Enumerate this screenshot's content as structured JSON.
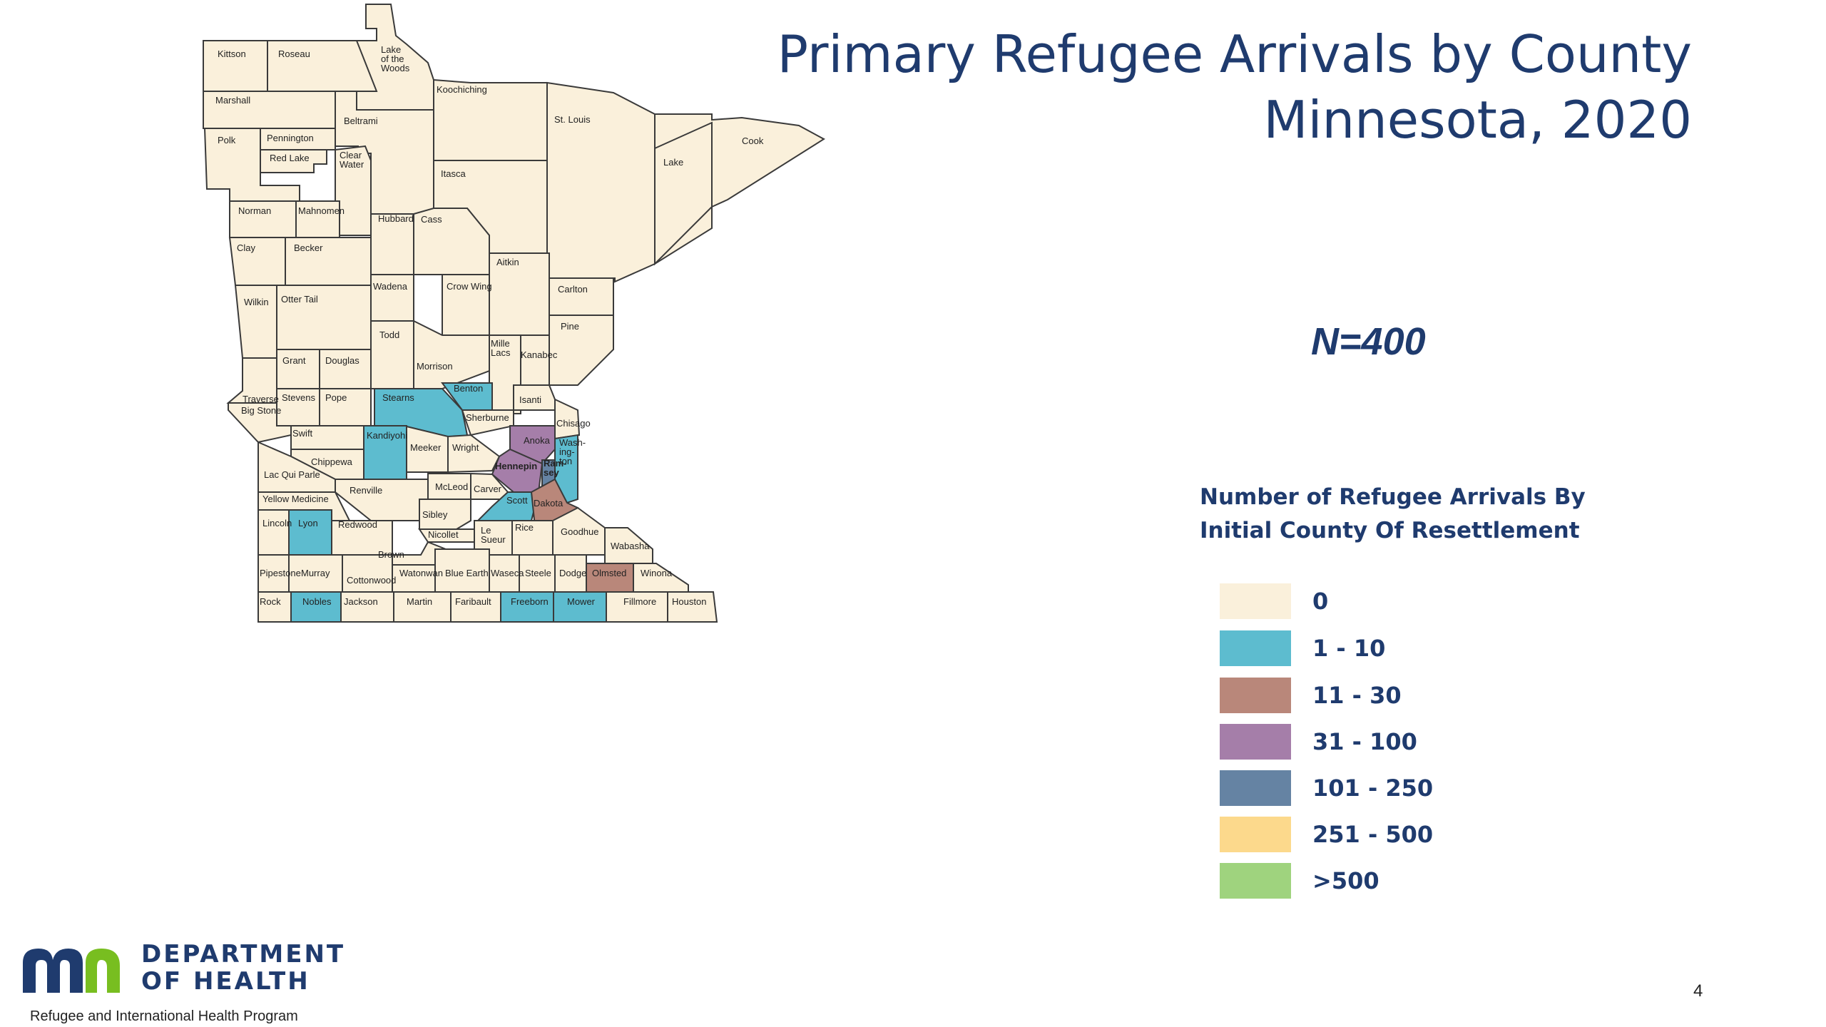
{
  "title": {
    "line1": "Primary Refugee Arrivals by County",
    "line2": "Minnesota, 2020"
  },
  "n_label": "N=400",
  "legend": {
    "title_line1": "Number of Refugee Arrivals By",
    "title_line2": "Initial County Of Resettlement",
    "items": [
      {
        "label": "0",
        "color": "#faf0db"
      },
      {
        "label": "1 - 10",
        "color": "#5dbccf"
      },
      {
        "label": "11 - 30",
        "color": "#b9877a"
      },
      {
        "label": "31 - 100",
        "color": "#a57ea9"
      },
      {
        "label": "101 - 250",
        "color": "#6583a3"
      },
      {
        "label": "251 - 500",
        "color": "#fcd98c"
      },
      {
        "label": ">500",
        "color": "#9fd37e"
      }
    ]
  },
  "counties": [
    {
      "name": "Kittson",
      "category": "0"
    },
    {
      "name": "Roseau",
      "category": "0"
    },
    {
      "name": "Lake of the Woods",
      "category": "0"
    },
    {
      "name": "Marshall",
      "category": "0"
    },
    {
      "name": "Koochiching",
      "category": "0"
    },
    {
      "name": "Beltrami",
      "category": "0"
    },
    {
      "name": "St. Louis",
      "category": "0"
    },
    {
      "name": "Cook",
      "category": "0"
    },
    {
      "name": "Polk",
      "category": "0"
    },
    {
      "name": "Pennington",
      "category": "0"
    },
    {
      "name": "Red Lake",
      "category": "0"
    },
    {
      "name": "Clear Water",
      "category": "0"
    },
    {
      "name": "Itasca",
      "category": "0"
    },
    {
      "name": "Lake",
      "category": "0"
    },
    {
      "name": "Norman",
      "category": "0"
    },
    {
      "name": "Mahnomen",
      "category": "0"
    },
    {
      "name": "Hubbard",
      "category": "0"
    },
    {
      "name": "Cass",
      "category": "0"
    },
    {
      "name": "Clay",
      "category": "0"
    },
    {
      "name": "Becker",
      "category": "0"
    },
    {
      "name": "Aitkin",
      "category": "0"
    },
    {
      "name": "Wadena",
      "category": "0"
    },
    {
      "name": "Crow Wing",
      "category": "0"
    },
    {
      "name": "Carlton",
      "category": "0"
    },
    {
      "name": "Wilkin",
      "category": "0"
    },
    {
      "name": "Otter Tail",
      "category": "0"
    },
    {
      "name": "Pine",
      "category": "0"
    },
    {
      "name": "Todd",
      "category": "0"
    },
    {
      "name": "Mille Lacs",
      "category": "0"
    },
    {
      "name": "Kanabec",
      "category": "0"
    },
    {
      "name": "Grant",
      "category": "0"
    },
    {
      "name": "Douglas",
      "category": "0"
    },
    {
      "name": "Morrison",
      "category": "0"
    },
    {
      "name": "Benton",
      "category": "1 - 10"
    },
    {
      "name": "Traverse",
      "category": "0"
    },
    {
      "name": "Stevens",
      "category": "0"
    },
    {
      "name": "Pope",
      "category": "0"
    },
    {
      "name": "Stearns",
      "category": "1 - 10"
    },
    {
      "name": "Isanti",
      "category": "0"
    },
    {
      "name": "Big Stone",
      "category": "0"
    },
    {
      "name": "Sherburne",
      "category": "0"
    },
    {
      "name": "Chisago",
      "category": "0"
    },
    {
      "name": "Swift",
      "category": "0"
    },
    {
      "name": "Kandiyohi",
      "category": "1 - 10"
    },
    {
      "name": "Anoka",
      "category": "31 - 100"
    },
    {
      "name": "Washington",
      "category": "1 - 10"
    },
    {
      "name": "Meeker",
      "category": "0"
    },
    {
      "name": "Wright",
      "category": "0"
    },
    {
      "name": "Chippewa",
      "category": "0"
    },
    {
      "name": "Hennepin",
      "category": "31 - 100"
    },
    {
      "name": "Ramsey",
      "category": "101 - 250"
    },
    {
      "name": "Lac Qui Parle",
      "category": "0"
    },
    {
      "name": "McLeod",
      "category": "0"
    },
    {
      "name": "Renville",
      "category": "0"
    },
    {
      "name": "Carver",
      "category": "0"
    },
    {
      "name": "Yellow Medicine",
      "category": "0"
    },
    {
      "name": "Scott",
      "category": "1 - 10"
    },
    {
      "name": "Dakota",
      "category": "11 - 30"
    },
    {
      "name": "Sibley",
      "category": "0"
    },
    {
      "name": "Lincoln",
      "category": "0"
    },
    {
      "name": "Lyon",
      "category": "1 - 10"
    },
    {
      "name": "Redwood",
      "category": "0"
    },
    {
      "name": "Rice",
      "category": "0"
    },
    {
      "name": "Nicollet",
      "category": "0"
    },
    {
      "name": "Goodhue",
      "category": "0"
    },
    {
      "name": "Le Sueur",
      "category": "0"
    },
    {
      "name": "Wabasha",
      "category": "0"
    },
    {
      "name": "Brown",
      "category": "0"
    },
    {
      "name": "Pipestone",
      "category": "0"
    },
    {
      "name": "Murray",
      "category": "0"
    },
    {
      "name": "Cottonwood",
      "category": "0"
    },
    {
      "name": "Watonwan",
      "category": "0"
    },
    {
      "name": "Blue Earth",
      "category": "0"
    },
    {
      "name": "Waseca",
      "category": "0"
    },
    {
      "name": "Steele",
      "category": "0"
    },
    {
      "name": "Dodge",
      "category": "0"
    },
    {
      "name": "Olmsted",
      "category": "11 - 30"
    },
    {
      "name": "Winona",
      "category": "0"
    },
    {
      "name": "Rock",
      "category": "0"
    },
    {
      "name": "Nobles",
      "category": "1 - 10"
    },
    {
      "name": "Jackson",
      "category": "0"
    },
    {
      "name": "Martin",
      "category": "0"
    },
    {
      "name": "Faribault",
      "category": "0"
    },
    {
      "name": "Freeborn",
      "category": "1 - 10"
    },
    {
      "name": "Mower",
      "category": "1 - 10"
    },
    {
      "name": "Fillmore",
      "category": "0"
    },
    {
      "name": "Houston",
      "category": "0"
    }
  ],
  "county_labels": {
    "Lake of the Woods": [
      "Lake",
      "of the",
      "Woods"
    ],
    "Clear Water": [
      "Clear",
      "Water"
    ],
    "Mille Lacs": [
      "Mille",
      "Lacs"
    ],
    "Washington": [
      "Wash-",
      "ing-",
      "ton"
    ],
    "Ramsey": [
      "Ram-",
      "sey"
    ],
    "Le Sueur": [
      "Le",
      "Sueur"
    ]
  },
  "logo": {
    "mark": "mn",
    "line1": "DEPARTMENT",
    "line2": "OF HEALTH",
    "program": "Refugee and International Health Program"
  },
  "page_number": "4"
}
